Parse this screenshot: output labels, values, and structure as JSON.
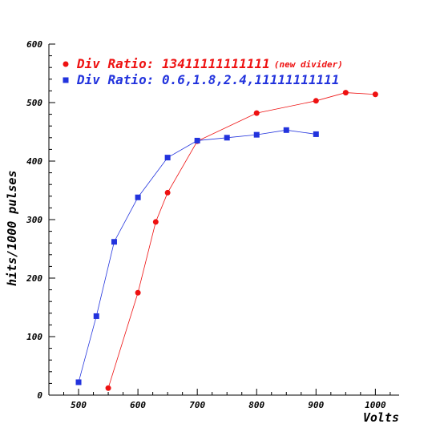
{
  "chart_data": {
    "type": "line",
    "title": "",
    "xlabel": "Volts",
    "ylabel": "hits/1000 pulses",
    "xlim": [
      450,
      1040
    ],
    "ylim": [
      0,
      600
    ],
    "x_ticks": [
      "500",
      "600",
      "700",
      "800",
      "900",
      "1000"
    ],
    "y_ticks": [
      "0",
      "100",
      "200",
      "300",
      "400",
      "500",
      "600"
    ],
    "grid": false,
    "legend_position": "top-left",
    "series": [
      {
        "name": "Div Ratio: 13411111111111",
        "name_note": "(new divider)",
        "color": "#ee1111",
        "marker": "circle",
        "points": [
          {
            "x": 550,
            "y": 12
          },
          {
            "x": 600,
            "y": 175
          },
          {
            "x": 630,
            "y": 296
          },
          {
            "x": 650,
            "y": 346
          },
          {
            "x": 700,
            "y": 434
          },
          {
            "x": 800,
            "y": 482
          },
          {
            "x": 900,
            "y": 503
          },
          {
            "x": 950,
            "y": 517
          },
          {
            "x": 1000,
            "y": 514
          }
        ]
      },
      {
        "name": "Div Ratio: 0.6,1.8,2.4,11111111111",
        "color": "#2233dd",
        "marker": "square",
        "points": [
          {
            "x": 500,
            "y": 22
          },
          {
            "x": 530,
            "y": 135
          },
          {
            "x": 560,
            "y": 262
          },
          {
            "x": 600,
            "y": 338
          },
          {
            "x": 650,
            "y": 406
          },
          {
            "x": 700,
            "y": 435
          },
          {
            "x": 750,
            "y": 440
          },
          {
            "x": 800,
            "y": 445
          },
          {
            "x": 850,
            "y": 453
          },
          {
            "x": 900,
            "y": 446
          }
        ]
      }
    ]
  }
}
